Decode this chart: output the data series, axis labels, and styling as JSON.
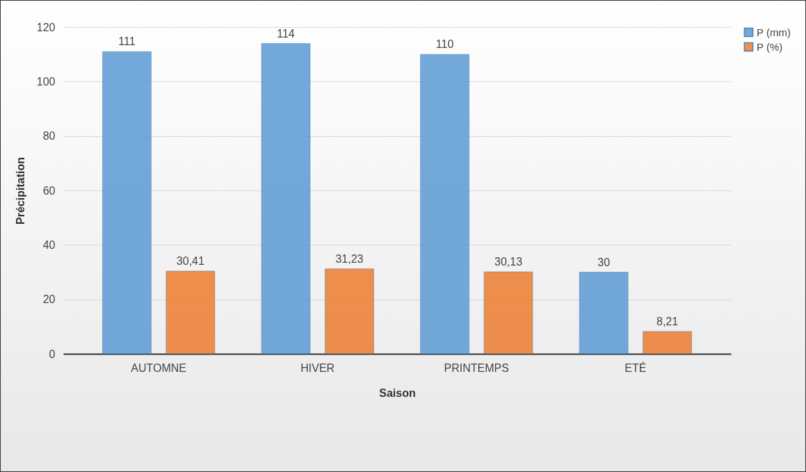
{
  "chart_data": {
    "type": "bar",
    "xlabel": "Saison",
    "ylabel": "Précipitation",
    "categories": [
      "AUTOMNE",
      "HIVER",
      "PRINTEMPS",
      "ETÉ"
    ],
    "series": [
      {
        "name": "P (mm)",
        "color": "#5b9bd5",
        "values": [
          111,
          114,
          110,
          30
        ],
        "value_labels": [
          "111",
          "114",
          "110",
          "30"
        ]
      },
      {
        "name": "P (%)",
        "color": "#ed7d31",
        "values": [
          30.41,
          31.23,
          30.13,
          8.21
        ],
        "value_labels": [
          "30,41",
          "31,23",
          "30,13",
          "8,21"
        ]
      }
    ],
    "ylim": [
      0,
      120
    ],
    "yticks": [
      0,
      20,
      40,
      60,
      80,
      100,
      120
    ],
    "grid": "y",
    "legend": "right"
  }
}
